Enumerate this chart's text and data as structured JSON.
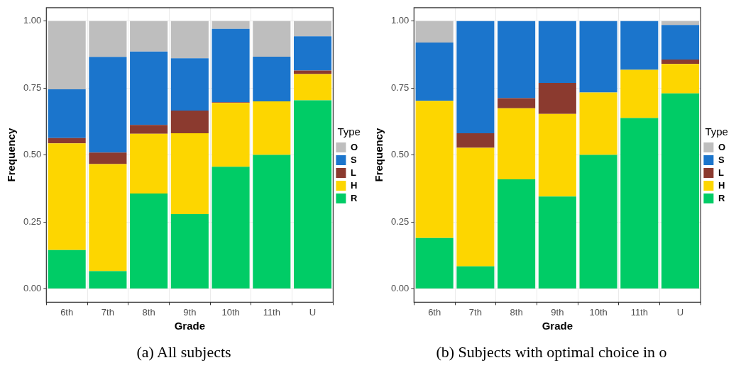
{
  "chart_data": [
    {
      "type": "bar",
      "stacked": true,
      "xlabel": "Grade",
      "ylabel": "Frequency",
      "legend_title": "Type",
      "legend": "right",
      "grid": true,
      "categories": [
        "6th",
        "7th",
        "8th",
        "9th",
        "10th",
        "11th",
        "U"
      ],
      "ylim": [
        -0.05,
        1.05
      ],
      "yticks": [
        {
          "value": 0,
          "label": "0.00"
        },
        {
          "value": 0.25,
          "label": "0.25"
        },
        {
          "value": 0.5,
          "label": "0.50"
        },
        {
          "value": 0.75,
          "label": "0.75"
        },
        {
          "value": 1,
          "label": "1.00"
        }
      ],
      "series": [
        {
          "name": "R",
          "color": "#00cc66",
          "values": [
            0.145,
            0.066,
            0.356,
            0.279,
            0.456,
            0.5,
            0.704
          ]
        },
        {
          "name": "H",
          "color": "#fdd600",
          "values": [
            0.398,
            0.4,
            0.223,
            0.302,
            0.238,
            0.2,
            0.098
          ]
        },
        {
          "name": "L",
          "color": "#8b3a2f",
          "values": [
            0.02,
            0.043,
            0.033,
            0.085,
            0.003,
            0,
            0.013
          ]
        },
        {
          "name": "S",
          "color": "#1b75cc",
          "values": [
            0.182,
            0.357,
            0.274,
            0.195,
            0.274,
            0.167,
            0.128
          ]
        },
        {
          "name": "O",
          "color": "#bebebe",
          "values": [
            0.255,
            0.134,
            0.114,
            0.139,
            0.029,
            0.133,
            0.057
          ]
        }
      ],
      "annotations": [
        "(a) All subjects"
      ]
    },
    {
      "type": "bar",
      "stacked": true,
      "xlabel": "Grade",
      "ylabel": "Frequency",
      "legend_title": "Type",
      "legend": "right",
      "grid": true,
      "categories": [
        "6th",
        "7th",
        "8th",
        "9th",
        "10th",
        "11th",
        "U"
      ],
      "ylim": [
        -0.05,
        1.05
      ],
      "yticks": [
        {
          "value": 0,
          "label": "0.00"
        },
        {
          "value": 0.25,
          "label": "0.25"
        },
        {
          "value": 0.5,
          "label": "0.50"
        },
        {
          "value": 0.75,
          "label": "0.75"
        },
        {
          "value": 1,
          "label": "1.00"
        }
      ],
      "series": [
        {
          "name": "R",
          "color": "#00cc66",
          "values": [
            0.19,
            0.084,
            0.409,
            0.345,
            0.5,
            0.638,
            0.73
          ]
        },
        {
          "name": "H",
          "color": "#fdd600",
          "values": [
            0.512,
            0.443,
            0.265,
            0.308,
            0.233,
            0.18,
            0.11
          ]
        },
        {
          "name": "L",
          "color": "#8b3a2f",
          "values": [
            0,
            0.054,
            0.038,
            0.116,
            0,
            0,
            0.016
          ]
        },
        {
          "name": "S",
          "color": "#1b75cc",
          "values": [
            0.218,
            0.419,
            0.288,
            0.231,
            0.267,
            0.182,
            0.129
          ]
        },
        {
          "name": "O",
          "color": "#bebebe",
          "values": [
            0.08,
            0,
            0,
            0,
            0,
            0,
            0.015
          ]
        }
      ],
      "annotations": [
        "(b) Subjects with optimal choice in o"
      ]
    }
  ]
}
